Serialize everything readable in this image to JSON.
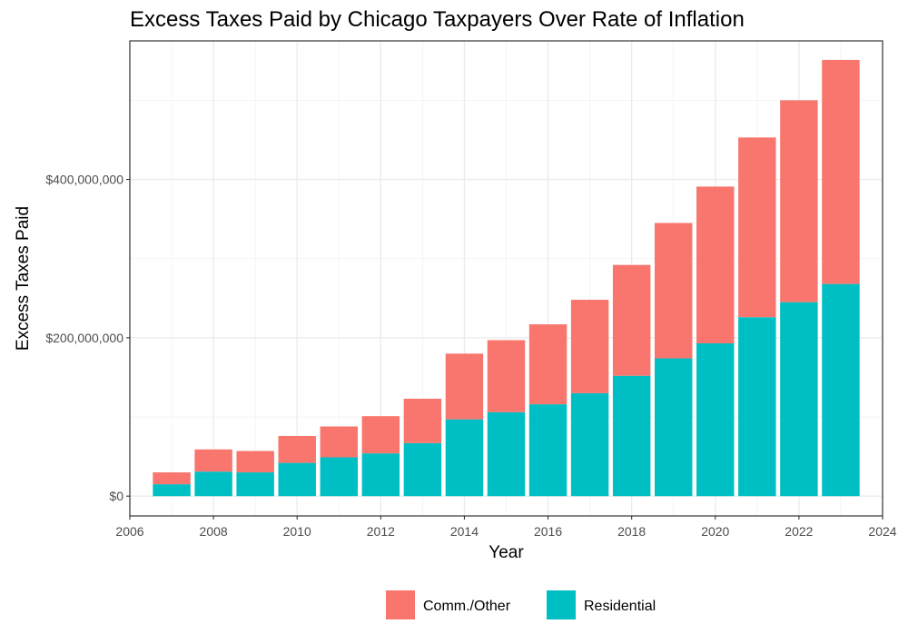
{
  "chart_data": {
    "type": "bar",
    "stacked": true,
    "title": "Excess Taxes Paid by Chicago Taxpayers Over Rate of Inflation",
    "xlabel": "Year",
    "ylabel": "Excess Taxes Paid",
    "x": [
      2007,
      2008,
      2009,
      2010,
      2011,
      2012,
      2013,
      2014,
      2015,
      2016,
      2017,
      2018,
      2019,
      2020,
      2021,
      2022,
      2023
    ],
    "series": [
      {
        "name": "Residential",
        "color": "#00BFC4",
        "values": [
          15000000,
          31000000,
          30000000,
          42000000,
          49000000,
          54000000,
          67000000,
          97000000,
          106000000,
          116000000,
          130000000,
          152000000,
          174000000,
          193000000,
          226000000,
          245000000,
          268000000
        ]
      },
      {
        "name": "Comm./Other",
        "color": "#F8766D",
        "values": [
          15000000,
          28000000,
          27000000,
          34000000,
          39000000,
          47000000,
          56000000,
          83000000,
          91000000,
          101000000,
          118000000,
          140000000,
          171000000,
          198000000,
          227000000,
          255000000,
          283000000
        ]
      }
    ],
    "xlim": [
      2006,
      2024
    ],
    "ylim": [
      -25000000,
      575000000
    ],
    "x_ticks": [
      2006,
      2008,
      2010,
      2012,
      2014,
      2016,
      2018,
      2020,
      2022,
      2024
    ],
    "y_ticks": [
      0,
      200000000,
      400000000
    ],
    "y_tick_labels": [
      "$0",
      "$200,000,000",
      "$400,000,000"
    ],
    "legend": {
      "position": "bottom",
      "entries": [
        "Comm./Other",
        "Residential"
      ]
    },
    "grid": true
  }
}
